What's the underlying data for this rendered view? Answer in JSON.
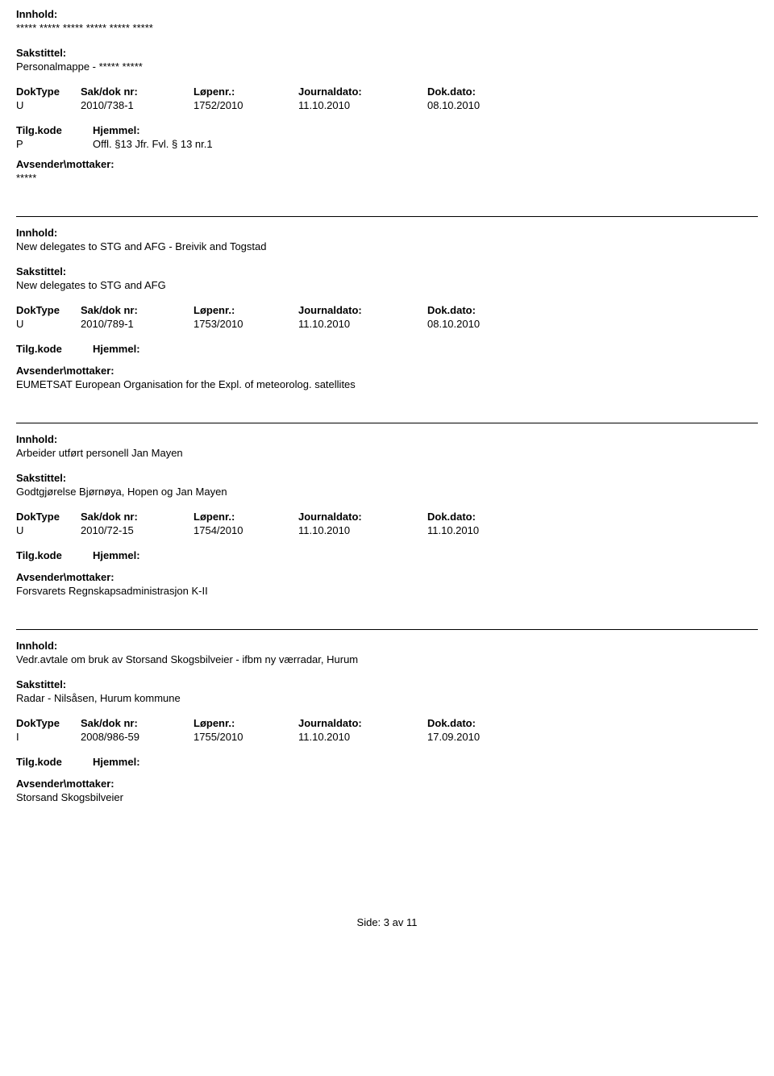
{
  "labels": {
    "innhold": "Innhold:",
    "sakstittel": "Sakstittel:",
    "doktype": "DokType",
    "sakdoknr": "Sak/dok nr:",
    "lopenr": "Løpenr.:",
    "journaldato": "Journaldato:",
    "dokdato": "Dok.dato:",
    "tilgkode": "Tilg.kode",
    "hjemmel": "Hjemmel:",
    "avsender": "Avsender\\mottaker:"
  },
  "entries": [
    {
      "innhold": "***** ***** ***** ***** ***** *****",
      "sakstittel": "Personalmappe - ***** *****",
      "doktype": "U",
      "sakdoknr": "2010/738-1",
      "lopenr": "1752/2010",
      "journaldato": "11.10.2010",
      "dokdato": "08.10.2010",
      "tilgkode": "P",
      "hjemmel": "Offl. §13 Jfr. Fvl. § 13 nr.1",
      "avsender": "*****"
    },
    {
      "innhold": "New delegates to STG and AFG - Breivik and Togstad",
      "sakstittel": "New delegates to STG and AFG",
      "doktype": "U",
      "sakdoknr": "2010/789-1",
      "lopenr": "1753/2010",
      "journaldato": "11.10.2010",
      "dokdato": "08.10.2010",
      "tilgkode": "",
      "hjemmel": "",
      "avsender": "EUMETSAT European Organisation for the Expl. of meteorolog. satellites"
    },
    {
      "innhold": "Arbeider utført personell Jan Mayen",
      "sakstittel": "Godtgjørelse Bjørnøya, Hopen og Jan Mayen",
      "doktype": "U",
      "sakdoknr": "2010/72-15",
      "lopenr": "1754/2010",
      "journaldato": "11.10.2010",
      "dokdato": "11.10.2010",
      "tilgkode": "",
      "hjemmel": "",
      "avsender": "Forsvarets Regnskapsadministrasjon K-II"
    },
    {
      "innhold": "Vedr.avtale om bruk av Storsand Skogsbilveier - ifbm ny værradar, Hurum",
      "sakstittel": "Radar - Nilsåsen, Hurum kommune",
      "doktype": "I",
      "sakdoknr": "2008/986-59",
      "lopenr": "1755/2010",
      "journaldato": "11.10.2010",
      "dokdato": "17.09.2010",
      "tilgkode": "",
      "hjemmel": "",
      "avsender": "Storsand Skogsbilveier"
    }
  ],
  "footer": {
    "text": "Side: 3 av 11"
  }
}
